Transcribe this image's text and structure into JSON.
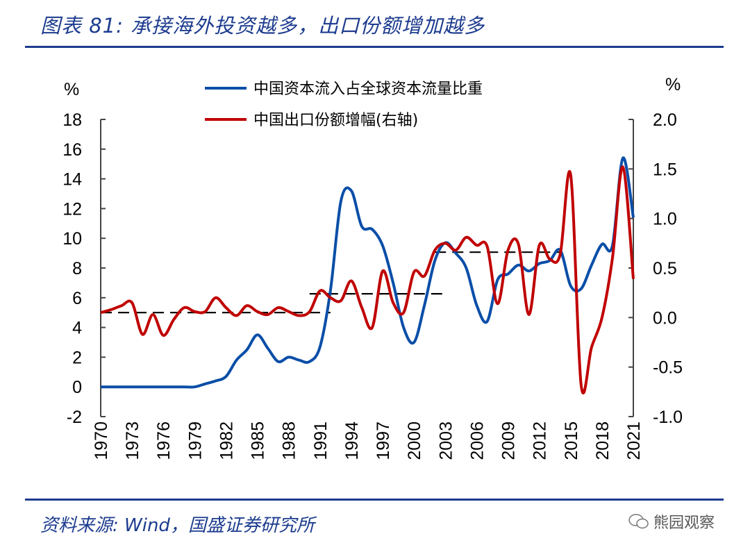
{
  "header": {
    "title": "图表 81:  承接海外投资越多，出口份额增加越多"
  },
  "footer": {
    "source": "资料来源:  Wind，国盛证券研究所",
    "watermark": "熊园观察",
    "watermark_icon": "wechat-icon"
  },
  "chart_data": {
    "type": "line",
    "title": "",
    "left_axis": {
      "unit": "%",
      "ylim": [
        -2,
        18
      ],
      "ticks": [
        "-2",
        "0",
        "2",
        "4",
        "6",
        "8",
        "10",
        "12",
        "14",
        "16",
        "18"
      ]
    },
    "right_axis": {
      "unit": "%",
      "ylim": [
        -1.0,
        2.0
      ],
      "ticks": [
        "-1.0",
        "-0.5",
        "0.0",
        "0.5",
        "1.0",
        "1.5",
        "2.0"
      ]
    },
    "x_ticks": [
      "1970",
      "1973",
      "1976",
      "1979",
      "1982",
      "1985",
      "1988",
      "1991",
      "1994",
      "1997",
      "2000",
      "2003",
      "2006",
      "2009",
      "2012",
      "2015",
      "2018",
      "2021"
    ],
    "x": [
      1970,
      1971,
      1972,
      1973,
      1974,
      1975,
      1976,
      1977,
      1978,
      1979,
      1980,
      1981,
      1982,
      1983,
      1984,
      1985,
      1986,
      1987,
      1988,
      1989,
      1990,
      1991,
      1992,
      1993,
      1994,
      1995,
      1996,
      1997,
      1998,
      1999,
      2000,
      2001,
      2002,
      2003,
      2004,
      2005,
      2006,
      2007,
      2008,
      2009,
      2010,
      2011,
      2012,
      2013,
      2014,
      2015,
      2016,
      2017,
      2018,
      2019,
      2020,
      2021
    ],
    "series": [
      {
        "name": "中国资本流入占全球资本流量比重",
        "axis": "left",
        "color": "#0a4ea8",
        "values": [
          0,
          0,
          0,
          0,
          0,
          0,
          0,
          0,
          0,
          0,
          0.2,
          0.4,
          0.7,
          1.8,
          2.5,
          3.5,
          2.6,
          1.7,
          2.0,
          1.8,
          1.7,
          2.7,
          6.5,
          12.5,
          13.2,
          10.8,
          10.6,
          9.5,
          7.0,
          4.0,
          3.0,
          5.5,
          8.5,
          9.7,
          9.0,
          8.0,
          5.5,
          4.4,
          7.2,
          7.6,
          8.2,
          7.8,
          8.3,
          8.5,
          9.2,
          6.8,
          6.6,
          8.2,
          9.6,
          9.5,
          15.4,
          11.4
        ]
      },
      {
        "name": "中国出口份额增幅(右轴)",
        "axis": "right",
        "color": "#c00000",
        "values": [
          0.05,
          0.08,
          0.12,
          0.15,
          -0.17,
          0.03,
          -0.18,
          -0.02,
          0.1,
          0.06,
          0.06,
          0.2,
          0.1,
          0.02,
          0.12,
          0.06,
          0.03,
          0.1,
          0.06,
          0.02,
          0.06,
          0.27,
          0.2,
          0.17,
          0.37,
          0.1,
          -0.1,
          0.47,
          0.15,
          0.05,
          0.46,
          0.42,
          0.68,
          0.75,
          0.68,
          0.81,
          0.73,
          0.72,
          0.14,
          0.68,
          0.74,
          0.03,
          0.73,
          0.59,
          0.64,
          1.44,
          -0.68,
          -0.3,
          0.0,
          0.6,
          1.52,
          0.39
        ]
      }
    ],
    "reference_lines": [
      {
        "axis": "right",
        "value": 0.05,
        "x_range": [
          1970,
          1992
        ],
        "style": "dashed",
        "color": "#000000"
      },
      {
        "axis": "right",
        "value": 0.24,
        "x_range": [
          1990,
          2003
        ],
        "style": "dashed",
        "color": "#000000"
      },
      {
        "axis": "right",
        "value": 0.66,
        "x_range": [
          2002,
          2014
        ],
        "style": "dashed",
        "color": "#000000"
      }
    ],
    "legend": "top-center",
    "grid": false
  }
}
